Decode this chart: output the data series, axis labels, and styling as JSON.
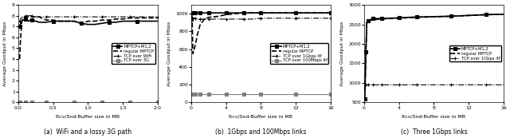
{
  "subplot_a": {
    "title": "(a)  WiFi and a lossy 3G path",
    "xlabel": "Rcv/Snd-Buffer size in MB",
    "ylabel": "Average Goodput in Mbps",
    "xlim": [
      0,
      2.0
    ],
    "ylim": [
      0,
      9
    ],
    "yticks": [
      0,
      1,
      2,
      3,
      4,
      5,
      6,
      7,
      8,
      9
    ],
    "xticks": [
      0.0,
      0.5,
      1.0,
      1.5,
      2.0
    ],
    "series": {
      "MPTCP+M1,2": {
        "x": [
          0.02,
          0.03,
          0.05,
          0.07,
          0.1,
          0.13,
          0.15,
          0.17,
          0.2,
          0.25,
          0.3,
          0.4,
          0.5,
          0.6,
          0.7,
          0.8,
          0.9,
          1.0,
          1.1,
          1.2,
          1.3,
          1.4,
          1.5,
          1.6,
          1.7,
          1.8,
          1.9,
          2.0
        ],
        "y": [
          7.0,
          7.2,
          7.5,
          7.6,
          7.7,
          7.6,
          7.5,
          7.6,
          7.6,
          7.5,
          7.4,
          7.4,
          7.5,
          7.5,
          7.5,
          7.5,
          7.3,
          7.2,
          7.2,
          7.3,
          7.4,
          7.4,
          7.5,
          7.5,
          7.5,
          7.5,
          7.5,
          7.5
        ],
        "style": "solid",
        "marker": "s",
        "color": "black",
        "linewidth": 1.2
      },
      "regular MPTCP": {
        "x": [
          0.02,
          0.03,
          0.05,
          0.07,
          0.1,
          0.13,
          0.15,
          0.17,
          0.2,
          0.25,
          0.3,
          0.4,
          0.5,
          0.6,
          0.7,
          0.8,
          0.9,
          1.0,
          1.1,
          1.2,
          1.3,
          1.4,
          1.5,
          1.6,
          1.7,
          1.8,
          1.9,
          2.0
        ],
        "y": [
          4.0,
          5.5,
          7.5,
          7.8,
          7.9,
          7.9,
          7.9,
          7.9,
          7.9,
          7.9,
          7.9,
          7.6,
          7.6,
          7.5,
          7.5,
          7.5,
          7.3,
          7.5,
          7.5,
          7.6,
          7.6,
          7.7,
          7.7,
          7.8,
          7.8,
          7.8,
          7.8,
          7.8
        ],
        "style": "dashed",
        "marker": null,
        "color": "black",
        "linewidth": 1.2
      },
      "TCP over WiFi": {
        "x": [
          0.02,
          0.03,
          0.05,
          0.07,
          0.1,
          0.13,
          0.15,
          0.17,
          0.2,
          0.25,
          0.3,
          0.35,
          0.4,
          0.5,
          0.6,
          0.7,
          0.8,
          0.9,
          1.0,
          1.1,
          1.2,
          1.3,
          1.4,
          1.5,
          1.6,
          1.7,
          1.8,
          1.9,
          2.0
        ],
        "y": [
          7.5,
          7.7,
          7.8,
          7.9,
          8.0,
          8.0,
          8.0,
          8.0,
          8.0,
          7.9,
          7.9,
          7.9,
          7.9,
          7.9,
          7.9,
          7.9,
          7.9,
          7.9,
          7.9,
          7.9,
          7.9,
          7.9,
          7.9,
          7.9,
          7.9,
          7.9,
          7.9,
          7.9,
          7.9
        ],
        "style": "dashdot",
        "marker": "+",
        "color": "black",
        "linewidth": 0.8
      },
      "TCP over 3G": {
        "x": [
          0.02,
          0.03,
          0.05,
          0.07,
          0.1,
          0.13,
          0.15,
          0.17,
          0.2,
          0.25,
          0.3,
          0.35,
          0.4,
          0.5,
          0.6,
          0.7,
          0.8,
          0.9,
          1.0,
          1.1,
          1.2,
          1.3,
          1.4,
          1.5,
          1.6,
          1.7,
          1.8,
          1.9,
          2.0
        ],
        "y": [
          0.05,
          0.05,
          0.05,
          0.05,
          0.05,
          0.05,
          0.05,
          0.05,
          0.05,
          0.05,
          0.05,
          0.05,
          0.05,
          0.05,
          0.05,
          0.05,
          0.05,
          0.05,
          0.05,
          0.05,
          0.05,
          0.05,
          0.05,
          0.05,
          0.05,
          0.05,
          0.05,
          0.05,
          0.05
        ],
        "style": "solid",
        "marker": "s",
        "color": "gray",
        "linewidth": 0.8
      }
    }
  },
  "subplot_b": {
    "title": "(b)  1Gbps and 100Mbps links",
    "xlabel": "Rcv/Snd-Buffer size in MB",
    "ylabel": "Average Goodput in Mbps",
    "xlim": [
      0,
      16
    ],
    "ylim": [
      0,
      1100
    ],
    "yticks": [
      0,
      200,
      400,
      600,
      800,
      1000
    ],
    "xticks": [
      0,
      4,
      8,
      12,
      16
    ],
    "series": {
      "MPTCP+M1,2": {
        "x": [
          0.05,
          0.1,
          0.2,
          0.3,
          0.5,
          0.7,
          1.0,
          1.5,
          2.0,
          3.0,
          4.0,
          5.0,
          6.0,
          7.0,
          8.0,
          10.0,
          12.0,
          14.0,
          16.0
        ],
        "y": [
          940,
          990,
          1010,
          1010,
          1010,
          1010,
          1010,
          1010,
          1010,
          1010,
          1010,
          1010,
          1010,
          1010,
          1010,
          1010,
          1010,
          1010,
          1010
        ],
        "style": "solid",
        "marker": "s",
        "color": "black",
        "linewidth": 1.2
      },
      "regular MPTCP": {
        "x": [
          0.05,
          0.1,
          0.2,
          0.5,
          0.7,
          1.0,
          1.5,
          2.0,
          3.0,
          4.0,
          5.0,
          6.0,
          7.0,
          8.0,
          10.0,
          12.0,
          14.0,
          16.0
        ],
        "y": [
          940,
          960,
          550,
          660,
          760,
          870,
          940,
          960,
          970,
          990,
          1000,
          1010,
          1010,
          1010,
          1010,
          1010,
          1010,
          1010
        ],
        "style": "dashed",
        "marker": null,
        "color": "black",
        "linewidth": 1.2
      },
      "TCP over 1Gbps itf": {
        "x": [
          0.05,
          0.1,
          0.2,
          0.3,
          0.5,
          0.7,
          1.0,
          1.5,
          2.0,
          3.0,
          4.0,
          5.0,
          6.0,
          7.0,
          8.0,
          10.0,
          12.0,
          14.0,
          16.0
        ],
        "y": [
          950,
          950,
          950,
          950,
          950,
          940,
          940,
          940,
          940,
          940,
          940,
          940,
          940,
          940,
          950,
          950,
          950,
          950,
          950
        ],
        "style": "dashdot",
        "marker": "+",
        "color": "black",
        "linewidth": 0.8
      },
      "TCP over 100Mbps itf": {
        "x": [
          0.05,
          0.1,
          0.2,
          0.3,
          0.5,
          0.7,
          1.0,
          1.5,
          2.0,
          3.0,
          4.0,
          5.0,
          6.0,
          7.0,
          8.0,
          10.0,
          12.0,
          14.0,
          16.0
        ],
        "y": [
          95,
          95,
          95,
          95,
          95,
          95,
          95,
          95,
          95,
          95,
          95,
          95,
          95,
          95,
          95,
          95,
          95,
          95,
          95
        ],
        "style": "solid",
        "marker": "s",
        "color": "gray",
        "linewidth": 0.8
      }
    }
  },
  "subplot_c": {
    "title": "(c)  Three 1Gbps links",
    "xlabel": "Rcv/Snd-Buffer size in MB",
    "ylabel": "Average Goodput in Mbps",
    "xlim": [
      0,
      16
    ],
    "ylim": [
      500,
      3000
    ],
    "yticks": [
      500,
      1000,
      1500,
      2000,
      2500,
      3000
    ],
    "xticks": [
      0,
      4,
      8,
      12,
      16
    ],
    "series": {
      "MPTCP+M1,2": {
        "x": [
          0.05,
          0.1,
          0.2,
          0.3,
          0.5,
          0.7,
          1.0,
          1.5,
          2.0,
          3.0,
          4.0,
          5.0,
          6.0,
          8.0,
          10.0,
          12.0,
          14.0,
          16.0
        ],
        "y": [
          580,
          900,
          1800,
          2560,
          2600,
          2620,
          2650,
          2650,
          2650,
          2660,
          2670,
          2680,
          2690,
          2700,
          2710,
          2730,
          2750,
          2760
        ],
        "style": "solid",
        "marker": "s",
        "color": "black",
        "linewidth": 1.2
      },
      "regular MPTCP": {
        "x": [
          0.05,
          0.1,
          0.2,
          0.3,
          0.5,
          0.7,
          1.0,
          1.5,
          2.0,
          3.0,
          4.0,
          5.0,
          6.0,
          8.0,
          10.0,
          12.0,
          14.0,
          16.0
        ],
        "y": [
          600,
          900,
          1800,
          2550,
          2580,
          2600,
          2620,
          2630,
          2640,
          2650,
          2660,
          2670,
          2680,
          2695,
          2710,
          2730,
          2750,
          2760
        ],
        "style": "dashed",
        "marker": null,
        "color": "black",
        "linewidth": 1.2
      },
      "TCP over 1Gbps itf": {
        "x": [
          0.05,
          0.1,
          0.2,
          0.3,
          0.5,
          0.7,
          1.0,
          1.5,
          2.0,
          3.0,
          4.0,
          5.0,
          6.0,
          8.0,
          10.0,
          12.0,
          14.0,
          16.0
        ],
        "y": [
          940,
          950,
          950,
          950,
          950,
          950,
          950,
          950,
          950,
          950,
          950,
          950,
          950,
          950,
          950,
          950,
          950,
          950
        ],
        "style": "dashdot",
        "marker": "+",
        "color": "black",
        "linewidth": 0.8
      }
    }
  }
}
